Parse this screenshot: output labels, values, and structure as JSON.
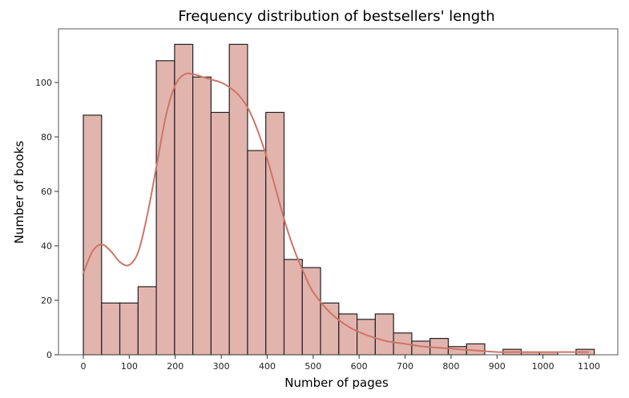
{
  "chart_data": {
    "type": "bar",
    "subtype": "histogram_with_kde",
    "title": "Frequency distribution of bestsellers' length",
    "xlabel": "Number of pages",
    "ylabel": "Number of books",
    "xlim": [
      -55,
      1160
    ],
    "ylim": [
      0,
      120
    ],
    "xticks": [
      0,
      100,
      200,
      300,
      400,
      500,
      600,
      700,
      800,
      900,
      1000,
      1100
    ],
    "yticks": [
      0,
      20,
      40,
      60,
      80,
      100
    ],
    "bin_start": 0,
    "bin_width": 39.7,
    "values": [
      88,
      19,
      19,
      25,
      108,
      114,
      102,
      89,
      114,
      75,
      89,
      35,
      32,
      19,
      15,
      13,
      15,
      8,
      5,
      6,
      3,
      4,
      0,
      2,
      1,
      1,
      0,
      2
    ],
    "kde": {
      "x": [
        0,
        20,
        40,
        60,
        80,
        100,
        120,
        140,
        160,
        180,
        200,
        220,
        240,
        260,
        280,
        300,
        320,
        340,
        360,
        380,
        400,
        420,
        440,
        460,
        480,
        500,
        540,
        580,
        620,
        660,
        700,
        740,
        780,
        820,
        860,
        900,
        950,
        1000,
        1050,
        1100
      ],
      "y": [
        30,
        38,
        40.5,
        38,
        34,
        33,
        38,
        52,
        70,
        88,
        99,
        103,
        103,
        102,
        101,
        100,
        98,
        95,
        90,
        82,
        72,
        60,
        48,
        38,
        30,
        23,
        15,
        10,
        7,
        5,
        4,
        3,
        2.5,
        2,
        1.5,
        1,
        1,
        1,
        1,
        1
      ]
    },
    "grid": false,
    "legend": null
  },
  "colors": {
    "bar_fill": "#e2b4ae",
    "bar_edge": "#222222",
    "kde_line": "#cc7566",
    "frame": "#555555"
  }
}
